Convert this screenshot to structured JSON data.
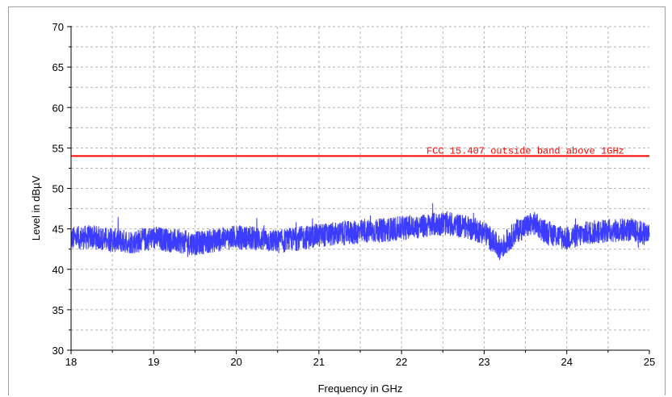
{
  "chart_data": {
    "type": "line",
    "title": "",
    "xlabel": "Frequency in GHz",
    "ylabel": "Level in dBµV",
    "xlim": [
      18,
      25
    ],
    "ylim": [
      30,
      70
    ],
    "x_ticks": [
      "18",
      "19",
      "20",
      "21",
      "22",
      "23",
      "24",
      "25"
    ],
    "y_ticks": [
      "30",
      "35",
      "40",
      "45",
      "50",
      "55",
      "60",
      "65",
      "70"
    ],
    "grid": true,
    "limit_line": {
      "label": "FCC 15.407 outside band above 1GHz",
      "value": 54,
      "color": "#ff0000"
    },
    "series": [
      {
        "color": "#3c3cff",
        "x": [
          18.0,
          18.25,
          18.5,
          18.75,
          19.0,
          19.25,
          19.5,
          19.75,
          20.0,
          20.25,
          20.5,
          20.75,
          21.0,
          21.25,
          21.5,
          21.75,
          22.0,
          22.25,
          22.5,
          22.75,
          23.0,
          23.2,
          23.4,
          23.6,
          23.75,
          24.0,
          24.25,
          24.5,
          24.75,
          25.0
        ],
        "y": [
          43.8,
          44.0,
          43.6,
          43.4,
          43.9,
          43.5,
          43.2,
          43.6,
          44.0,
          43.8,
          43.4,
          43.8,
          44.2,
          44.4,
          44.6,
          44.8,
          45.1,
          45.3,
          45.7,
          45.3,
          44.6,
          42.5,
          44.8,
          45.7,
          44.6,
          43.8,
          44.5,
          44.8,
          44.9,
          44.3
        ]
      }
    ]
  }
}
